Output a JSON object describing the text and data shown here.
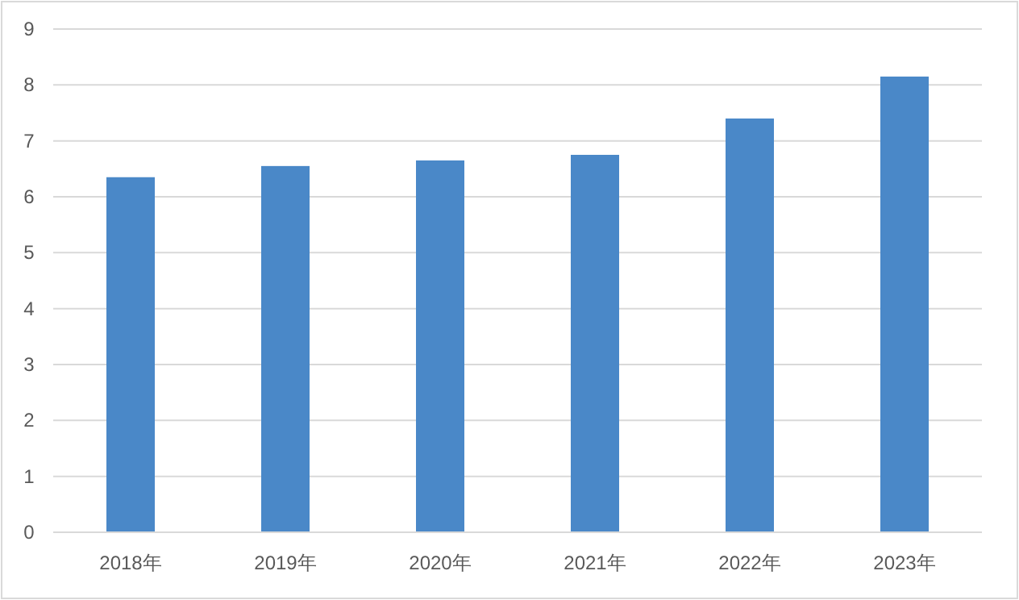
{
  "chart_data": {
    "type": "bar",
    "categories": [
      "2018年",
      "2019年",
      "2020年",
      "2021年",
      "2022年",
      "2023年"
    ],
    "values": [
      6.35,
      6.55,
      6.65,
      6.75,
      7.4,
      8.15
    ],
    "color": "#4a88c8",
    "ylim": [
      0,
      9
    ],
    "yticks": [
      0,
      1,
      2,
      3,
      4,
      5,
      6,
      7,
      8,
      9
    ],
    "grid": "y"
  }
}
